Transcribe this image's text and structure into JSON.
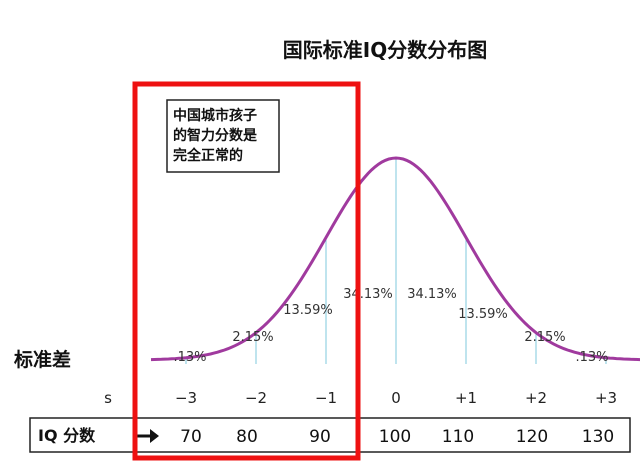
{
  "chart_data": {
    "type": "line",
    "title": "国际标准IQ分数分布图",
    "x_axis_label": "标准差",
    "sd_ticks": [
      "−3",
      "−2",
      "−1",
      "0",
      "+1",
      "+2",
      "+3"
    ],
    "sd_tick_stub": "s",
    "percentages": [
      ".13%",
      "2.15%",
      "13.59%",
      "34.13%",
      "34.13%",
      "13.59%",
      "2.15%",
      ".13%"
    ],
    "iq_row_label": "IQ 分数",
    "iq_values": [
      "70",
      "80",
      "90",
      "100",
      "110",
      "120",
      "130"
    ],
    "annotation_lines": [
      "中国城市孩子",
      "的智力分数是",
      "完全正常的"
    ],
    "curve_color": "#a03a9e",
    "gridline_color": "#7fc8de",
    "highlight_color": "#ee1111"
  }
}
